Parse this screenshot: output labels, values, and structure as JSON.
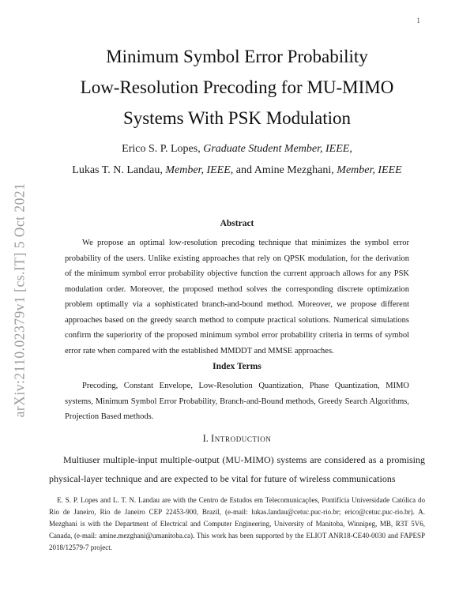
{
  "page": {
    "number": "1",
    "watermark": "arXiv:2110.02379v1  [cs.IT]  5 Oct 2021"
  },
  "title": {
    "line1": "Minimum Symbol Error Probability",
    "line2": "Low-Resolution Precoding for MU-MIMO",
    "line3": "Systems With PSK Modulation"
  },
  "authors": {
    "line1": {
      "name1": "Erico S. P. Lopes, ",
      "role1": "Graduate Student Member, IEEE",
      "tail": ","
    },
    "line2": {
      "name1": "Lukas T. N. Landau, ",
      "role1": "Member, IEEE",
      "mid": ", and Amine Mezghani, ",
      "role2": "Member, IEEE"
    }
  },
  "abstract": {
    "heading": "Abstract",
    "body": "We propose an optimal low-resolution precoding technique that minimizes the symbol error probability of the users. Unlike existing approaches that rely on QPSK modulation, for the derivation of the minimum symbol error probability objective function the current approach allows for any PSK modulation order. Moreover, the proposed method solves the corresponding discrete optimization problem optimally via a sophisticated branch-and-bound method. Moreover, we propose different approaches based on the greedy search method to compute practical solutions. Numerical simulations confirm the superiority of the proposed minimum symbol error probability criteria in terms of symbol error rate when compared with the established MMDDT and MMSE approaches."
  },
  "index_terms": {
    "heading": "Index Terms",
    "body": "Precoding, Constant Envelope, Low-Resolution Quantization, Phase Quantization, MIMO systems, Minimum Symbol Error Probability, Branch-and-Bound methods, Greedy Search Algorithms, Projection Based methods."
  },
  "introduction": {
    "number": "I.",
    "heading": "Introduction",
    "body": "Multiuser multiple-input multiple-output (MU-MIMO) systems are considered as a promising physical-layer technique and are expected to be vital for future of wireless communications"
  },
  "footnote": {
    "body": "E. S. P. Lopes and L. T. N. Landau are with the Centro de Estudos em Telecomunicações, Pontifícia Universidade Católica do Rio de Janeiro, Rio de Janeiro CEP 22453-900, Brazil, (e-mail: lukas.landau@cetuc.puc-rio.br; erico@cetuc.puc-rio.br). A. Mezghani is with the Department of Electrical and Computer Engineering, University of Manitoba, Winnipeg, MB, R3T 5V6, Canada, (e-mail: amine.mezghani@umanitoba.ca). This work has been supported by the ELIOT ANR18-CE40-0030 and FAPESP 2018/12579-7 project."
  }
}
